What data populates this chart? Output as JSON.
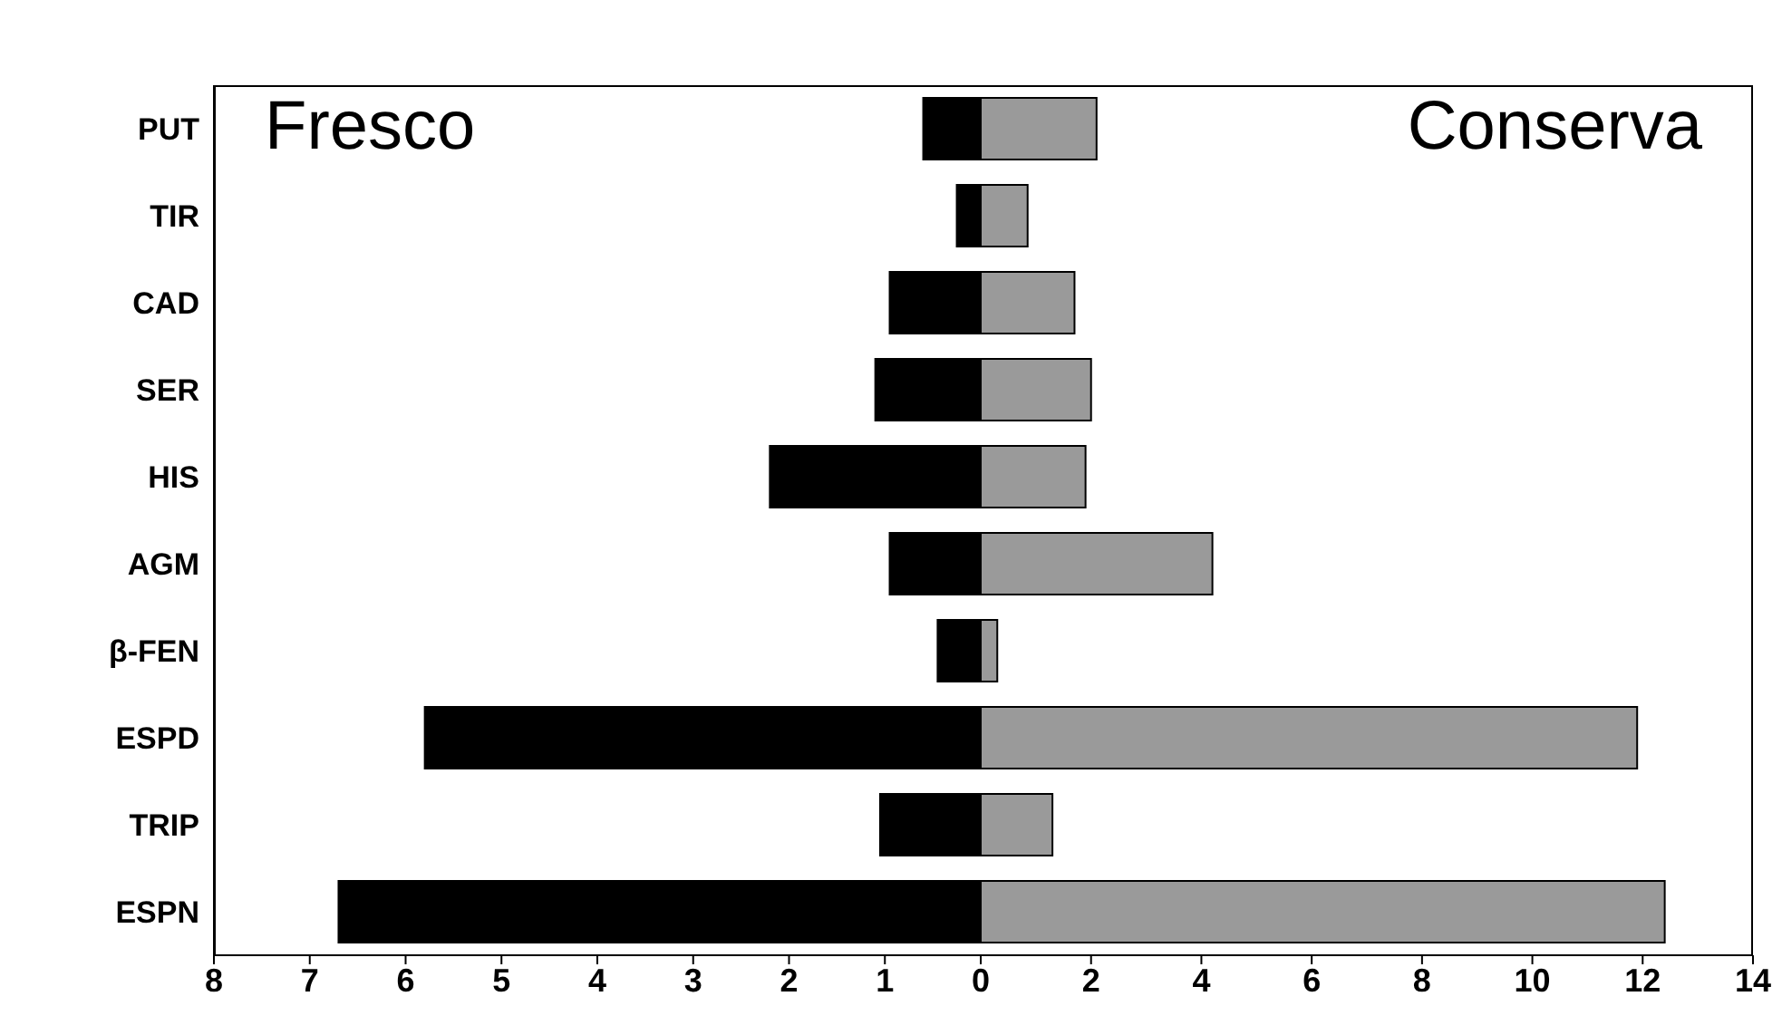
{
  "chart_data": [
    {
      "type": "bar",
      "orientation": "horizontal",
      "title": "Fresco",
      "categories": [
        "PUT",
        "TIR",
        "CAD",
        "SER",
        "HIS",
        "AGM",
        "β-FEN",
        "ESPD",
        "TRIP",
        "ESPN"
      ],
      "values": [
        0.6,
        0.25,
        0.95,
        1.1,
        2.2,
        0.95,
        0.45,
        5.8,
        1.05,
        6.7
      ],
      "color": "#000000",
      "xlim": [
        8,
        0
      ],
      "xticks": [
        8,
        7,
        6,
        5,
        4,
        3,
        2,
        1,
        0
      ]
    },
    {
      "type": "bar",
      "orientation": "horizontal",
      "title": "Conserva",
      "categories": [
        null,
        null,
        null,
        null,
        null,
        null,
        null,
        null,
        null,
        null
      ],
      "values": [
        2.1,
        0.85,
        1.7,
        2.0,
        1.9,
        4.2,
        0.3,
        11.9,
        1.3,
        12.4
      ],
      "color": "#9a9a9a",
      "xlim": [
        0,
        14
      ],
      "xticks": [
        {
          "value": 0,
          "label": null
        },
        2,
        4,
        6,
        8,
        10,
        12,
        14
      ],
      "tick_labels": "x"
    }
  ]
}
